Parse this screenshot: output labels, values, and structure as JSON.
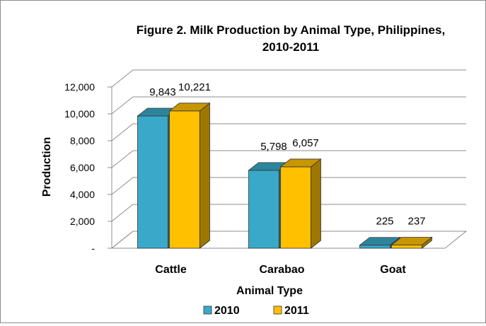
{
  "chart_data": {
    "type": "bar",
    "title_line1": "Figure 2. Milk Production by Animal Type, Philippines,",
    "title_line2": "2010-2011",
    "xlabel": "Animal Type",
    "ylabel": "Production",
    "categories": [
      "Cattle",
      "Carabao",
      "Goat"
    ],
    "series": [
      {
        "name": "2010",
        "values": [
          9843,
          5798,
          225
        ],
        "labels": [
          "9,843",
          "5,798",
          "225"
        ],
        "color": "#3aa9c9"
      },
      {
        "name": "2011",
        "values": [
          10221,
          6057,
          237
        ],
        "labels": [
          "10,221",
          "6,057",
          "237"
        ],
        "color": "#ffc000"
      }
    ],
    "yticks": [
      "-",
      "2,000",
      "4,000",
      "6,000",
      "8,000",
      "10,000",
      "12,000"
    ],
    "ylim": [
      0,
      12000
    ],
    "grid": true,
    "legend_position": "bottom"
  }
}
